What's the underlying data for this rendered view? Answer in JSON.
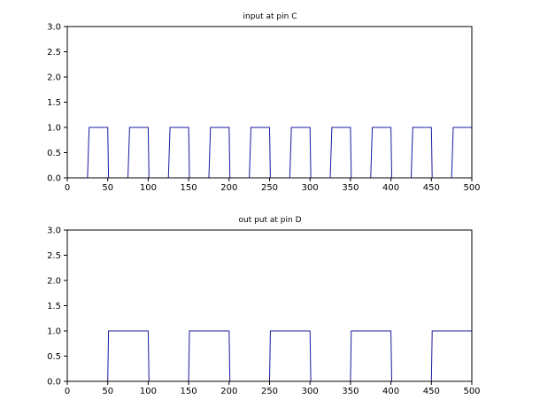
{
  "colors": {
    "series": "#1a1aa0",
    "axes": "#000000",
    "background": "#ffffff"
  },
  "chart_data": [
    {
      "type": "line",
      "title": "input at pin C",
      "xlabel": "",
      "ylabel": "",
      "xlim": [
        0,
        500
      ],
      "ylim": [
        0.0,
        3.0
      ],
      "x_ticks": [
        "0",
        "50",
        "100",
        "150",
        "200",
        "250",
        "300",
        "350",
        "400",
        "450",
        "500"
      ],
      "y_ticks": [
        "0.0",
        "0.5",
        "1.0",
        "1.5",
        "2.0",
        "2.5",
        "3.0"
      ],
      "grid": false,
      "series": [
        {
          "x": [
            0,
            25,
            27,
            50,
            51,
            75,
            77,
            100,
            101,
            125,
            127,
            150,
            151,
            175,
            177,
            200,
            201,
            225,
            227,
            250,
            251,
            275,
            277,
            300,
            301,
            325,
            327,
            350,
            351,
            375,
            377,
            400,
            401,
            425,
            427,
            450,
            451,
            475,
            477,
            500
          ],
          "y": [
            0,
            0,
            1,
            1,
            0,
            0,
            1,
            1,
            0,
            0,
            1,
            1,
            0,
            0,
            1,
            1,
            0,
            0,
            1,
            1,
            0,
            0,
            1,
            1,
            0,
            0,
            1,
            1,
            0,
            0,
            1,
            1,
            0,
            0,
            1,
            1,
            0,
            0,
            1,
            1
          ]
        }
      ]
    },
    {
      "type": "line",
      "title": "out put at pin D",
      "xlabel": "",
      "ylabel": "",
      "xlim": [
        0,
        500
      ],
      "ylim": [
        0.0,
        3.0
      ],
      "x_ticks": [
        "0",
        "50",
        "100",
        "150",
        "200",
        "250",
        "300",
        "350",
        "400",
        "450",
        "500"
      ],
      "y_ticks": [
        "0.0",
        "0.5",
        "1.0",
        "1.5",
        "2.0",
        "2.5",
        "3.0"
      ],
      "grid": false,
      "series": [
        {
          "x": [
            0,
            50,
            51,
            100,
            101,
            150,
            151,
            200,
            201,
            250,
            251,
            300,
            301,
            350,
            351,
            400,
            401,
            450,
            451,
            500
          ],
          "y": [
            0,
            0,
            1,
            1,
            0,
            0,
            1,
            1,
            0,
            0,
            1,
            1,
            0,
            0,
            1,
            1,
            0,
            0,
            1,
            1
          ]
        }
      ]
    }
  ]
}
